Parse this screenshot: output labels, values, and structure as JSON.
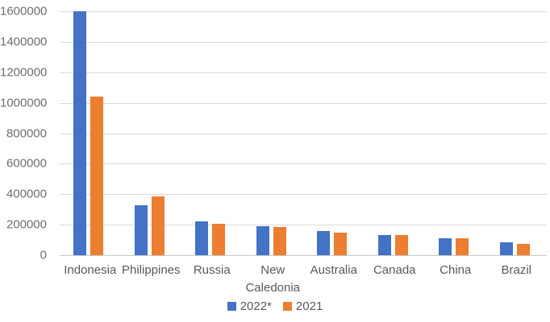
{
  "chart_data": {
    "type": "bar",
    "title": "",
    "xlabel": "",
    "ylabel": "",
    "categories": [
      "Indonesia",
      "Philippines",
      "Russia",
      "New Caledonia",
      "Australia",
      "Canada",
      "China",
      "Brazil"
    ],
    "series": [
      {
        "name": "2022*",
        "color": "#4472c4",
        "values": [
          1600000,
          330000,
          220000,
          190000,
          160000,
          130000,
          110000,
          83000
        ]
      },
      {
        "name": "2021",
        "color": "#ed7d31",
        "values": [
          1040000,
          387000,
          205000,
          186000,
          150000,
          134000,
          109000,
          75000
        ]
      }
    ],
    "ylim": [
      0,
      1600000
    ],
    "ytick_step": 200000,
    "ytick_labels": [
      "0",
      "200000",
      "400000",
      "600000",
      "800000",
      "1000000",
      "1200000",
      "1400000",
      "1600000"
    ],
    "grid": true,
    "legend_position": "bottom"
  },
  "colors": {
    "gridline": "#d9d9d9",
    "axis_line": "#c8c8c8",
    "y_label_text": "#6e6e6e",
    "x_label_text": "#595959",
    "legend_text": "#595959",
    "background": "#ffffff"
  }
}
